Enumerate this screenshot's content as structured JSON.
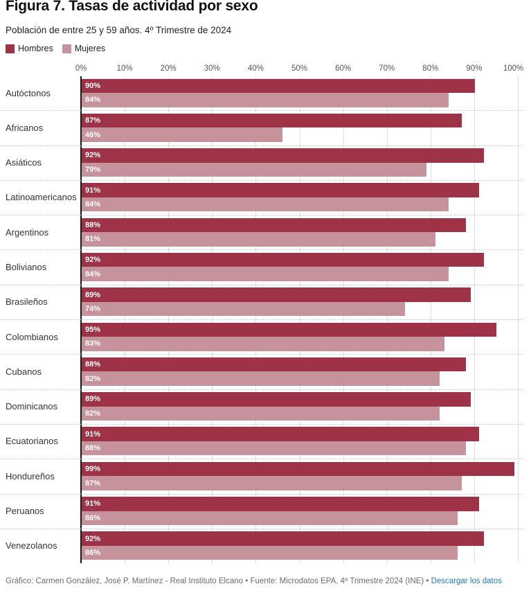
{
  "header": {
    "title": "Figura 7. Tasas de actividad por sexo",
    "subtitle": "Población de entre 25 y 59 años. 4º Trimestre de 2024"
  },
  "legend": {
    "items": [
      {
        "label": "Hombres",
        "color": "#9e3347"
      },
      {
        "label": "Mujeres",
        "color": "#c6939c"
      }
    ]
  },
  "footer": {
    "credit": "Gráfico: Carmen González, José P. Martínez - Real Instituto Elcano",
    "separator": "•",
    "source": "Fuente: Microdatos EPA, 4º Trimestre 2024 (INE)",
    "link_label": "Descargar los datos",
    "link_color": "#1e7cc0"
  },
  "chart_data": {
    "type": "bar",
    "orientation": "horizontal",
    "title": "Figura 7. Tasas de actividad por sexo",
    "subtitle": "Población de entre 25 y 59 años. 4º Trimestre de 2024",
    "categories": [
      "Autóctonos",
      "Africanos",
      "Asiáticos",
      "Latinoamericanos",
      "Argentinos",
      "Bolivianos",
      "Brasileños",
      "Colombianos",
      "Cubanos",
      "Dominicanos",
      "Ecuatorianos",
      "Hondureños",
      "Peruanos",
      "Venezolanos"
    ],
    "series": [
      {
        "name": "Hombres",
        "color": "#9e3347",
        "values": [
          90,
          87,
          92,
          91,
          88,
          92,
          89,
          95,
          88,
          89,
          91,
          99,
          91,
          92
        ]
      },
      {
        "name": "Mujeres",
        "color": "#c6939c",
        "values": [
          84,
          46,
          79,
          84,
          81,
          84,
          74,
          83,
          82,
          82,
          88,
          87,
          86,
          86
        ]
      }
    ],
    "value_suffix": "%",
    "x_ticks": [
      "0%",
      "10%",
      "20%",
      "30%",
      "40%",
      "50%",
      "60%",
      "70%",
      "80%",
      "90%",
      "100%"
    ],
    "xlim": [
      0,
      100
    ],
    "grid": "vertical-light-gray",
    "legend_position": "top-left",
    "value_labels": "inside-bar-left-white"
  }
}
